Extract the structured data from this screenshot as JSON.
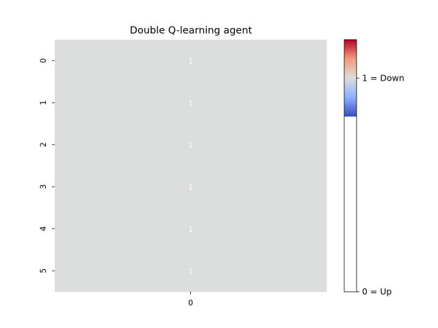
{
  "chart_data": {
    "type": "heatmap",
    "title": "Double Q-learning agent",
    "xlabel": "",
    "ylabel": "",
    "x_categories": [
      "0"
    ],
    "y_categories": [
      "0",
      "1",
      "2",
      "3",
      "4",
      "5"
    ],
    "values": [
      [
        1
      ],
      [
        1
      ],
      [
        1
      ],
      [
        1
      ],
      [
        1
      ],
      [
        1
      ]
    ],
    "annotations": [
      [
        "1"
      ],
      [
        "1"
      ],
      [
        "1"
      ],
      [
        "1"
      ],
      [
        "1"
      ],
      [
        "1"
      ]
    ],
    "cell_color": "#dcdddd",
    "annotation_color": "#ffffff",
    "colorbar": {
      "range": [
        0,
        1
      ],
      "ticks": [
        {
          "value": 0,
          "label": "0 = Up"
        },
        {
          "value": 1,
          "label": "1 = Down"
        }
      ],
      "colored_band": [
        0.82,
        1.18
      ],
      "colormap": "coolwarm",
      "colormap_stops": [
        "#3b4cc0",
        "#8db0fe",
        "#dddddd",
        "#f49a7b",
        "#b40426"
      ]
    }
  }
}
